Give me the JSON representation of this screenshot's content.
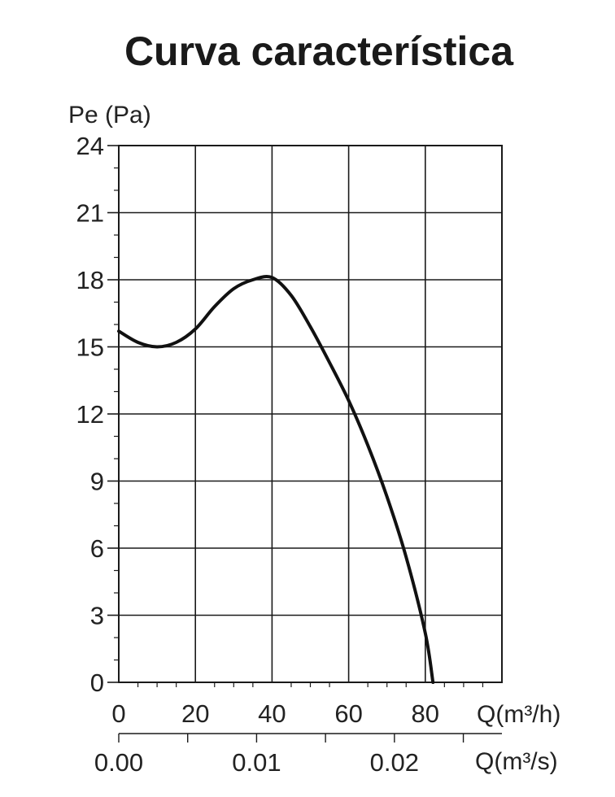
{
  "chart_data": {
    "type": "line",
    "title": "Curva característica",
    "ylabel": "Pe (Pa)",
    "xlabel": "Q(m³/h)",
    "x2label": "Q(m³/s)",
    "ylim": [
      0,
      24
    ],
    "xlim": [
      0,
      100
    ],
    "yticks": [
      "0",
      "3",
      "6",
      "9",
      "12",
      "15",
      "18",
      "21",
      "24"
    ],
    "xticks": [
      "0",
      "20",
      "40",
      "60",
      "80"
    ],
    "x2lim": [
      0,
      0.0278
    ],
    "x2ticks": [
      "0.00",
      "0.01",
      "0.02"
    ],
    "grid": true,
    "series": [
      {
        "color": "#111111",
        "x": [
          0,
          5,
          10,
          15,
          20,
          25,
          30,
          35,
          40,
          45,
          50,
          55,
          60,
          65,
          70,
          75,
          80,
          82
        ],
        "y": [
          15.7,
          15.2,
          15.0,
          15.2,
          15.8,
          16.8,
          17.6,
          18.0,
          18.1,
          17.3,
          15.9,
          14.3,
          12.6,
          10.6,
          8.3,
          5.6,
          2.2,
          0.0
        ]
      }
    ]
  }
}
